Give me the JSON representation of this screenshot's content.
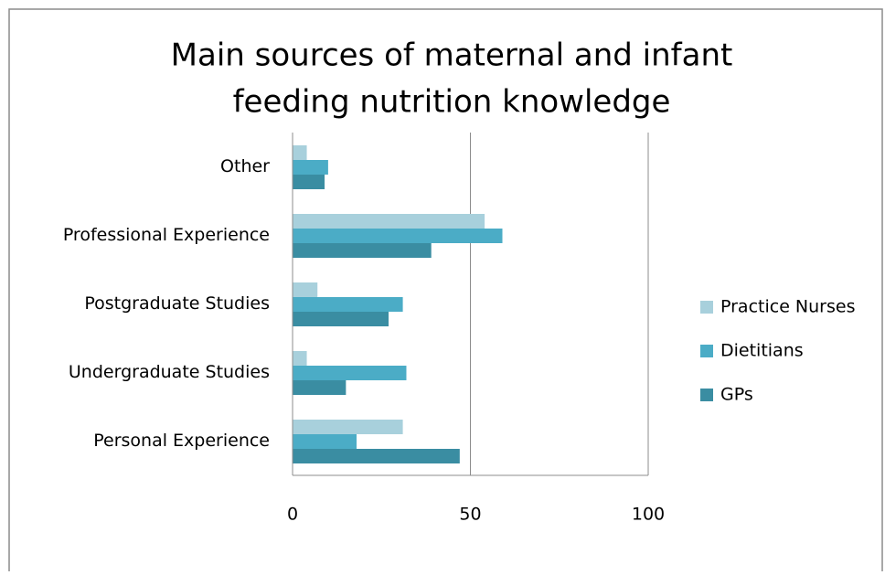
{
  "chart_data": {
    "type": "bar",
    "orientation": "horizontal",
    "title": [
      "Main sources of maternal and infant",
      "feeding nutrition knowledge"
    ],
    "categories": [
      "Other",
      "Professional Experience",
      "Postgraduate Studies",
      "Undergraduate Studies",
      "Personal Experience"
    ],
    "series": [
      {
        "name": "Practice Nurses",
        "color": "#a8d0dc",
        "values": [
          4,
          54,
          7,
          4,
          31
        ]
      },
      {
        "name": "Dietitians",
        "color": "#4bacc6",
        "values": [
          10,
          59,
          31,
          32,
          18
        ]
      },
      {
        "name": "GPs",
        "color": "#3a8da2",
        "values": [
          9,
          39,
          27,
          15,
          47
        ]
      }
    ],
    "xlim": [
      0,
      100
    ],
    "xticks": [
      0,
      50,
      100
    ],
    "grid": true,
    "legend": "right"
  }
}
